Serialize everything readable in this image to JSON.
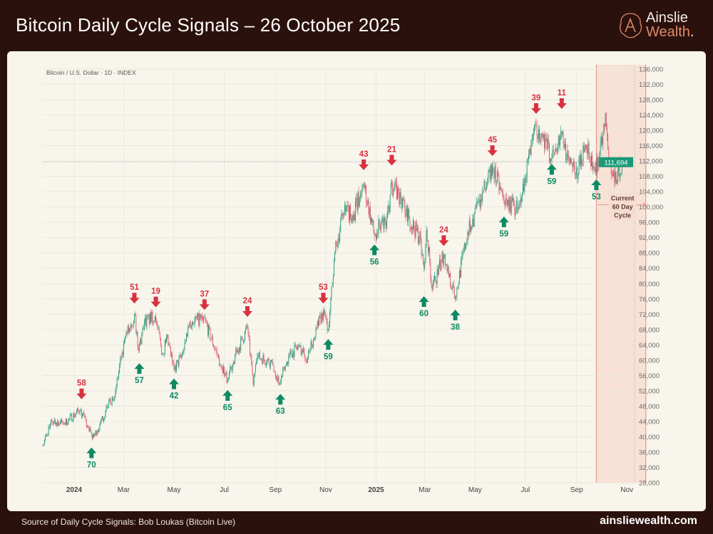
{
  "header": {
    "title": "Bitcoin Daily Cycle Signals – 26 October 2025"
  },
  "logo": {
    "line1": "Ainslie",
    "line2": "Wealth",
    "dot": "."
  },
  "footer": {
    "source": "Source of Daily Cycle Signals: Bob Loukas (Bitcoin Live)",
    "site": "ainsliewealth.com"
  },
  "colors": {
    "up": "#1f9a78",
    "down": "#e0566a",
    "high_signal": "#d8323f",
    "low_signal": "#0e8a63",
    "price_tag": "#1a9a78",
    "cycle_shade": "#f6ddd0",
    "header_bg": "#2b110d"
  },
  "chart_data": {
    "type": "candlestick",
    "symbol_label": "Bitcoin / U.S. Dollar · 1D · INDEX",
    "y_range": [
      28000,
      136000
    ],
    "y_ticks": [
      "136,000",
      "132,000",
      "128,000",
      "124,000",
      "120,000",
      "116,000",
      "112,000",
      "108,000",
      "104,000",
      "100,000",
      "96,000",
      "92,000",
      "88,000",
      "84,000",
      "80,000",
      "76,000",
      "72,000",
      "68,000",
      "64,000",
      "60,000",
      "56,000",
      "52,000",
      "48,000",
      "44,000",
      "40,000",
      "36,000",
      "32,000",
      "28,000"
    ],
    "x_range": [
      "2023-11-24",
      "2025-12-01"
    ],
    "x_ticks": [
      {
        "label": "2024",
        "date": "2024-01-01",
        "bold": true
      },
      {
        "label": "Mar",
        "date": "2024-03-01"
      },
      {
        "label": "May",
        "date": "2024-05-01"
      },
      {
        "label": "Jul",
        "date": "2024-07-01"
      },
      {
        "label": "Sep",
        "date": "2024-09-01"
      },
      {
        "label": "Nov",
        "date": "2024-11-01"
      },
      {
        "label": "2025",
        "date": "2025-01-01",
        "bold": true
      },
      {
        "label": "Mar",
        "date": "2025-03-01"
      },
      {
        "label": "May",
        "date": "2025-05-01"
      },
      {
        "label": "Jul",
        "date": "2025-07-01"
      },
      {
        "label": "Sep",
        "date": "2025-09-01"
      },
      {
        "label": "Nov",
        "date": "2025-11-01"
      }
    ],
    "current_price": 111694,
    "current_price_label": "111,694",
    "grid": true,
    "price_path": [
      [
        "2023-11-24",
        38000
      ],
      [
        "2023-12-05",
        44000
      ],
      [
        "2023-12-20",
        43500
      ],
      [
        "2024-01-08",
        47000
      ],
      [
        "2024-01-11",
        46000
      ],
      [
        "2024-01-23",
        39500
      ],
      [
        "2024-02-01",
        43000
      ],
      [
        "2024-02-10",
        47500
      ],
      [
        "2024-02-20",
        52000
      ],
      [
        "2024-02-28",
        62000
      ],
      [
        "2024-03-05",
        67000
      ],
      [
        "2024-03-14",
        72000
      ],
      [
        "2024-03-19",
        62500
      ],
      [
        "2024-03-26",
        70000
      ],
      [
        "2024-04-08",
        71500
      ],
      [
        "2024-04-17",
        61500
      ],
      [
        "2024-04-22",
        66000
      ],
      [
        "2024-05-01",
        57500
      ],
      [
        "2024-05-10",
        61000
      ],
      [
        "2024-05-20",
        70000
      ],
      [
        "2024-06-06",
        71000
      ],
      [
        "2024-06-24",
        60500
      ],
      [
        "2024-07-05",
        55000
      ],
      [
        "2024-07-14",
        61000
      ],
      [
        "2024-07-29",
        68500
      ],
      [
        "2024-08-05",
        53500
      ],
      [
        "2024-08-10",
        61000
      ],
      [
        "2024-08-27",
        59500
      ],
      [
        "2024-09-06",
        54000
      ],
      [
        "2024-09-18",
        61500
      ],
      [
        "2024-09-30",
        63500
      ],
      [
        "2024-10-10",
        60500
      ],
      [
        "2024-10-21",
        68500
      ],
      [
        "2024-10-29",
        72500
      ],
      [
        "2024-11-04",
        68000
      ],
      [
        "2024-11-12",
        88000
      ],
      [
        "2024-11-22",
        98500
      ],
      [
        "2024-12-05",
        98000
      ],
      [
        "2024-12-17",
        106000
      ],
      [
        "2024-12-30",
        92500
      ],
      [
        "2025-01-07",
        96000
      ],
      [
        "2025-01-13",
        94500
      ],
      [
        "2025-01-20",
        106000
      ],
      [
        "2025-01-31",
        102000
      ],
      [
        "2025-02-10",
        97000
      ],
      [
        "2025-02-24",
        91500
      ],
      [
        "2025-02-28",
        84000
      ],
      [
        "2025-03-03",
        94000
      ],
      [
        "2025-03-10",
        78500
      ],
      [
        "2025-03-24",
        87500
      ],
      [
        "2025-04-07",
        76500
      ],
      [
        "2025-04-22",
        93500
      ],
      [
        "2025-05-08",
        102000
      ],
      [
        "2025-05-22",
        110500
      ],
      [
        "2025-06-05",
        101500
      ],
      [
        "2025-06-22",
        99500
      ],
      [
        "2025-06-30",
        107500
      ],
      [
        "2025-07-14",
        121000
      ],
      [
        "2025-07-22",
        118000
      ],
      [
        "2025-08-02",
        113000
      ],
      [
        "2025-08-14",
        119000
      ],
      [
        "2025-08-20",
        112500
      ],
      [
        "2025-08-31",
        108500
      ],
      [
        "2025-09-12",
        116000
      ],
      [
        "2025-09-25",
        109000
      ],
      [
        "2025-10-06",
        124500
      ],
      [
        "2025-10-10",
        112000
      ],
      [
        "2025-10-17",
        106500
      ],
      [
        "2025-10-26",
        111694
      ]
    ],
    "signals": [
      {
        "label": "58",
        "type": "high",
        "date": "2024-01-10",
        "price": 48500
      },
      {
        "label": "70",
        "type": "low",
        "date": "2024-01-22",
        "price": 38500
      },
      {
        "label": "51",
        "type": "high",
        "date": "2024-03-14",
        "price": 73500
      },
      {
        "label": "57",
        "type": "low",
        "date": "2024-03-20",
        "price": 60500
      },
      {
        "label": "19",
        "type": "high",
        "date": "2024-04-09",
        "price": 72500
      },
      {
        "label": "42",
        "type": "low",
        "date": "2024-05-01",
        "price": 56500
      },
      {
        "label": "37",
        "type": "high",
        "date": "2024-06-07",
        "price": 71800
      },
      {
        "label": "65",
        "type": "low",
        "date": "2024-07-05",
        "price": 53500
      },
      {
        "label": "24",
        "type": "high",
        "date": "2024-07-29",
        "price": 70000
      },
      {
        "label": "63",
        "type": "low",
        "date": "2024-09-07",
        "price": 52500
      },
      {
        "label": "53",
        "type": "high",
        "date": "2024-10-29",
        "price": 73500
      },
      {
        "label": "59",
        "type": "low",
        "date": "2024-11-04",
        "price": 66800
      },
      {
        "label": "43",
        "type": "high",
        "date": "2024-12-17",
        "price": 108300
      },
      {
        "label": "56",
        "type": "low",
        "date": "2024-12-30",
        "price": 91500
      },
      {
        "label": "21",
        "type": "high",
        "date": "2025-01-20",
        "price": 109500
      },
      {
        "label": "60",
        "type": "low",
        "date": "2025-02-28",
        "price": 78000
      },
      {
        "label": "24",
        "type": "high",
        "date": "2025-03-24",
        "price": 88500
      },
      {
        "label": "38",
        "type": "low",
        "date": "2025-04-07",
        "price": 74500
      },
      {
        "label": "45",
        "type": "high",
        "date": "2025-05-22",
        "price": 112000
      },
      {
        "label": "59",
        "type": "low",
        "date": "2025-06-05",
        "price": 98800
      },
      {
        "label": "39",
        "type": "high",
        "date": "2025-07-14",
        "price": 123000
      },
      {
        "label": "59",
        "type": "low",
        "date": "2025-08-02",
        "price": 112500
      },
      {
        "label": "11",
        "type": "high",
        "date": "2025-08-14",
        "price": 124300
      },
      {
        "label": "53",
        "type": "low",
        "date": "2025-09-25",
        "price": 108500
      }
    ],
    "cycle_annotation": {
      "text_lines": [
        "Current",
        "60 Day",
        "Cycle"
      ],
      "start": "2025-09-25",
      "end": "2025-11-24"
    }
  }
}
